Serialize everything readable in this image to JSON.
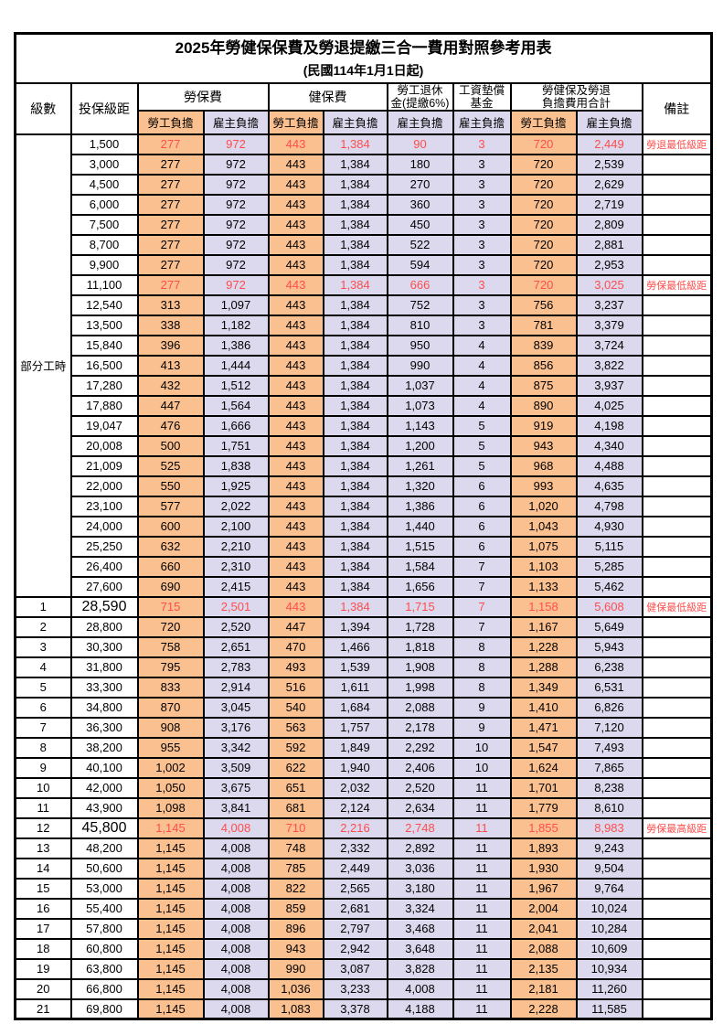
{
  "title": "2025年勞健保保費及勞退提繳三合一費用對照參考用表",
  "subtitle": "(民國114年1月1日起)",
  "colors": {
    "employee_bg": "#FAC090",
    "employer_bg": "#DCD9EE",
    "highlight_text": "#FF4D4D",
    "border": "#000000"
  },
  "header": {
    "level": "級數",
    "bracket": "投保級距",
    "labor_group": "勞保費",
    "health_group": "健保費",
    "pension_line1": "勞工退休",
    "pension_line2": "金(提繳6%)",
    "fund_line1": "工資墊償",
    "fund_line2": "基金",
    "total_line1": "勞健保及勞退",
    "total_line2": "負擔費用合計",
    "remark": "備註",
    "employee": "勞工負擔",
    "employer": "雇主負擔"
  },
  "part_time_label": "部分工時",
  "part_time_rowspan": 23,
  "value_col_classes": [
    "emp",
    "er",
    "emp",
    "er",
    "er",
    "er",
    "emp",
    "er"
  ],
  "rows": [
    {
      "level": null,
      "bracket": "1,500",
      "v": [
        "277",
        "972",
        "443",
        "1,384",
        "90",
        "3",
        "720",
        "2,449"
      ],
      "remark": "勞退最低級距",
      "red": true,
      "big": false
    },
    {
      "level": null,
      "bracket": "3,000",
      "v": [
        "277",
        "972",
        "443",
        "1,384",
        "180",
        "3",
        "720",
        "2,539"
      ],
      "remark": "",
      "red": false,
      "big": false
    },
    {
      "level": null,
      "bracket": "4,500",
      "v": [
        "277",
        "972",
        "443",
        "1,384",
        "270",
        "3",
        "720",
        "2,629"
      ],
      "remark": "",
      "red": false,
      "big": false
    },
    {
      "level": null,
      "bracket": "6,000",
      "v": [
        "277",
        "972",
        "443",
        "1,384",
        "360",
        "3",
        "720",
        "2,719"
      ],
      "remark": "",
      "red": false,
      "big": false
    },
    {
      "level": null,
      "bracket": "7,500",
      "v": [
        "277",
        "972",
        "443",
        "1,384",
        "450",
        "3",
        "720",
        "2,809"
      ],
      "remark": "",
      "red": false,
      "big": false
    },
    {
      "level": null,
      "bracket": "8,700",
      "v": [
        "277",
        "972",
        "443",
        "1,384",
        "522",
        "3",
        "720",
        "2,881"
      ],
      "remark": "",
      "red": false,
      "big": false
    },
    {
      "level": null,
      "bracket": "9,900",
      "v": [
        "277",
        "972",
        "443",
        "1,384",
        "594",
        "3",
        "720",
        "2,953"
      ],
      "remark": "",
      "red": false,
      "big": false
    },
    {
      "level": null,
      "bracket": "11,100",
      "v": [
        "277",
        "972",
        "443",
        "1,384",
        "666",
        "3",
        "720",
        "3,025"
      ],
      "remark": "勞保最低級距",
      "red": true,
      "big": false
    },
    {
      "level": null,
      "bracket": "12,540",
      "v": [
        "313",
        "1,097",
        "443",
        "1,384",
        "752",
        "3",
        "756",
        "3,237"
      ],
      "remark": "",
      "red": false,
      "big": false
    },
    {
      "level": null,
      "bracket": "13,500",
      "v": [
        "338",
        "1,182",
        "443",
        "1,384",
        "810",
        "3",
        "781",
        "3,379"
      ],
      "remark": "",
      "red": false,
      "big": false
    },
    {
      "level": null,
      "bracket": "15,840",
      "v": [
        "396",
        "1,386",
        "443",
        "1,384",
        "950",
        "4",
        "839",
        "3,724"
      ],
      "remark": "",
      "red": false,
      "big": false
    },
    {
      "level": null,
      "bracket": "16,500",
      "v": [
        "413",
        "1,444",
        "443",
        "1,384",
        "990",
        "4",
        "856",
        "3,822"
      ],
      "remark": "",
      "red": false,
      "big": false
    },
    {
      "level": null,
      "bracket": "17,280",
      "v": [
        "432",
        "1,512",
        "443",
        "1,384",
        "1,037",
        "4",
        "875",
        "3,937"
      ],
      "remark": "",
      "red": false,
      "big": false
    },
    {
      "level": null,
      "bracket": "17,880",
      "v": [
        "447",
        "1,564",
        "443",
        "1,384",
        "1,073",
        "4",
        "890",
        "4,025"
      ],
      "remark": "",
      "red": false,
      "big": false
    },
    {
      "level": null,
      "bracket": "19,047",
      "v": [
        "476",
        "1,666",
        "443",
        "1,384",
        "1,143",
        "5",
        "919",
        "4,198"
      ],
      "remark": "",
      "red": false,
      "big": false
    },
    {
      "level": null,
      "bracket": "20,008",
      "v": [
        "500",
        "1,751",
        "443",
        "1,384",
        "1,200",
        "5",
        "943",
        "4,340"
      ],
      "remark": "",
      "red": false,
      "big": false
    },
    {
      "level": null,
      "bracket": "21,009",
      "v": [
        "525",
        "1,838",
        "443",
        "1,384",
        "1,261",
        "5",
        "968",
        "4,488"
      ],
      "remark": "",
      "red": false,
      "big": false
    },
    {
      "level": null,
      "bracket": "22,000",
      "v": [
        "550",
        "1,925",
        "443",
        "1,384",
        "1,320",
        "6",
        "993",
        "4,635"
      ],
      "remark": "",
      "red": false,
      "big": false
    },
    {
      "level": null,
      "bracket": "23,100",
      "v": [
        "577",
        "2,022",
        "443",
        "1,384",
        "1,386",
        "6",
        "1,020",
        "4,798"
      ],
      "remark": "",
      "red": false,
      "big": false
    },
    {
      "level": null,
      "bracket": "24,000",
      "v": [
        "600",
        "2,100",
        "443",
        "1,384",
        "1,440",
        "6",
        "1,043",
        "4,930"
      ],
      "remark": "",
      "red": false,
      "big": false
    },
    {
      "level": null,
      "bracket": "25,250",
      "v": [
        "632",
        "2,210",
        "443",
        "1,384",
        "1,515",
        "6",
        "1,075",
        "5,115"
      ],
      "remark": "",
      "red": false,
      "big": false
    },
    {
      "level": null,
      "bracket": "26,400",
      "v": [
        "660",
        "2,310",
        "443",
        "1,384",
        "1,584",
        "7",
        "1,103",
        "5,285"
      ],
      "remark": "",
      "red": false,
      "big": false
    },
    {
      "level": null,
      "bracket": "27,600",
      "v": [
        "690",
        "2,415",
        "443",
        "1,384",
        "1,656",
        "7",
        "1,133",
        "5,462"
      ],
      "remark": "",
      "red": false,
      "big": false
    },
    {
      "level": "1",
      "bracket": "28,590",
      "v": [
        "715",
        "2,501",
        "443",
        "1,384",
        "1,715",
        "7",
        "1,158",
        "5,608"
      ],
      "remark": "健保最低級距",
      "red": true,
      "big": true
    },
    {
      "level": "2",
      "bracket": "28,800",
      "v": [
        "720",
        "2,520",
        "447",
        "1,394",
        "1,728",
        "7",
        "1,167",
        "5,649"
      ],
      "remark": "",
      "red": false,
      "big": false
    },
    {
      "level": "3",
      "bracket": "30,300",
      "v": [
        "758",
        "2,651",
        "470",
        "1,466",
        "1,818",
        "8",
        "1,228",
        "5,943"
      ],
      "remark": "",
      "red": false,
      "big": false
    },
    {
      "level": "4",
      "bracket": "31,800",
      "v": [
        "795",
        "2,783",
        "493",
        "1,539",
        "1,908",
        "8",
        "1,288",
        "6,238"
      ],
      "remark": "",
      "red": false,
      "big": false
    },
    {
      "level": "5",
      "bracket": "33,300",
      "v": [
        "833",
        "2,914",
        "516",
        "1,611",
        "1,998",
        "8",
        "1,349",
        "6,531"
      ],
      "remark": "",
      "red": false,
      "big": false
    },
    {
      "level": "6",
      "bracket": "34,800",
      "v": [
        "870",
        "3,045",
        "540",
        "1,684",
        "2,088",
        "9",
        "1,410",
        "6,826"
      ],
      "remark": "",
      "red": false,
      "big": false
    },
    {
      "level": "7",
      "bracket": "36,300",
      "v": [
        "908",
        "3,176",
        "563",
        "1,757",
        "2,178",
        "9",
        "1,471",
        "7,120"
      ],
      "remark": "",
      "red": false,
      "big": false
    },
    {
      "level": "8",
      "bracket": "38,200",
      "v": [
        "955",
        "3,342",
        "592",
        "1,849",
        "2,292",
        "10",
        "1,547",
        "7,493"
      ],
      "remark": "",
      "red": false,
      "big": false
    },
    {
      "level": "9",
      "bracket": "40,100",
      "v": [
        "1,002",
        "3,509",
        "622",
        "1,940",
        "2,406",
        "10",
        "1,624",
        "7,865"
      ],
      "remark": "",
      "red": false,
      "big": false
    },
    {
      "level": "10",
      "bracket": "42,000",
      "v": [
        "1,050",
        "3,675",
        "651",
        "2,032",
        "2,520",
        "11",
        "1,701",
        "8,238"
      ],
      "remark": "",
      "red": false,
      "big": false
    },
    {
      "level": "11",
      "bracket": "43,900",
      "v": [
        "1,098",
        "3,841",
        "681",
        "2,124",
        "2,634",
        "11",
        "1,779",
        "8,610"
      ],
      "remark": "",
      "red": false,
      "big": false
    },
    {
      "level": "12",
      "bracket": "45,800",
      "v": [
        "1,145",
        "4,008",
        "710",
        "2,216",
        "2,748",
        "11",
        "1,855",
        "8,983"
      ],
      "remark": "勞保最高級距",
      "red": true,
      "big": true
    },
    {
      "level": "13",
      "bracket": "48,200",
      "v": [
        "1,145",
        "4,008",
        "748",
        "2,332",
        "2,892",
        "11",
        "1,893",
        "9,243"
      ],
      "remark": "",
      "red": false,
      "big": false
    },
    {
      "level": "14",
      "bracket": "50,600",
      "v": [
        "1,145",
        "4,008",
        "785",
        "2,449",
        "3,036",
        "11",
        "1,930",
        "9,504"
      ],
      "remark": "",
      "red": false,
      "big": false
    },
    {
      "level": "15",
      "bracket": "53,000",
      "v": [
        "1,145",
        "4,008",
        "822",
        "2,565",
        "3,180",
        "11",
        "1,967",
        "9,764"
      ],
      "remark": "",
      "red": false,
      "big": false
    },
    {
      "level": "16",
      "bracket": "55,400",
      "v": [
        "1,145",
        "4,008",
        "859",
        "2,681",
        "3,324",
        "11",
        "2,004",
        "10,024"
      ],
      "remark": "",
      "red": false,
      "big": false
    },
    {
      "level": "17",
      "bracket": "57,800",
      "v": [
        "1,145",
        "4,008",
        "896",
        "2,797",
        "3,468",
        "11",
        "2,041",
        "10,284"
      ],
      "remark": "",
      "red": false,
      "big": false
    },
    {
      "level": "18",
      "bracket": "60,800",
      "v": [
        "1,145",
        "4,008",
        "943",
        "2,942",
        "3,648",
        "11",
        "2,088",
        "10,609"
      ],
      "remark": "",
      "red": false,
      "big": false
    },
    {
      "level": "19",
      "bracket": "63,800",
      "v": [
        "1,145",
        "4,008",
        "990",
        "3,087",
        "3,828",
        "11",
        "2,135",
        "10,934"
      ],
      "remark": "",
      "red": false,
      "big": false
    },
    {
      "level": "20",
      "bracket": "66,800",
      "v": [
        "1,145",
        "4,008",
        "1,036",
        "3,233",
        "4,008",
        "11",
        "2,181",
        "11,260"
      ],
      "remark": "",
      "red": false,
      "big": false
    },
    {
      "level": "21",
      "bracket": "69,800",
      "v": [
        "1,145",
        "4,008",
        "1,083",
        "3,378",
        "4,188",
        "11",
        "2,228",
        "11,585"
      ],
      "remark": "",
      "red": false,
      "big": false
    }
  ]
}
